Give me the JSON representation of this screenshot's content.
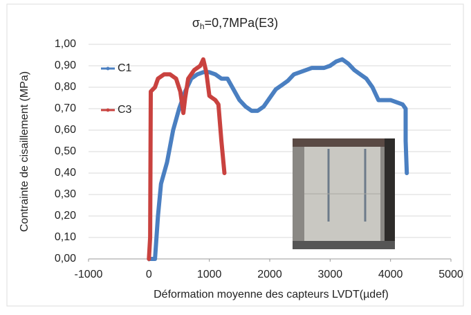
{
  "chart_data": {
    "type": "line",
    "title": [
      "σ",
      "h",
      "=0,7MPa(E3)"
    ],
    "xlabel": "Déformation moyenne des capteurs LVDT(µdef)",
    "ylabel": "Contrainte de cisaillement (MPa)",
    "xlim": [
      -1000,
      5000
    ],
    "xticks": [
      -1000,
      0,
      1000,
      2000,
      3000,
      4000,
      5000
    ],
    "ylim": [
      0,
      1
    ],
    "yticks": [
      {
        "value": 0,
        "label": "0,00"
      },
      {
        "value": 0.1,
        "label": "0,10"
      },
      {
        "value": 0.2,
        "label": "0,20"
      },
      {
        "value": 0.3,
        "label": "0,30"
      },
      {
        "value": 0.4,
        "label": "0,40"
      },
      {
        "value": 0.5,
        "label": "0,50"
      },
      {
        "value": 0.6,
        "label": "0,60"
      },
      {
        "value": 0.7,
        "label": "0,70"
      },
      {
        "value": 0.8,
        "label": "0,80"
      },
      {
        "value": 0.9,
        "label": "0,90"
      },
      {
        "value": 1,
        "label": "1,00"
      }
    ],
    "grid": true,
    "legend": "left",
    "series": [
      {
        "name": "C1",
        "color": "#4a7fc1",
        "x": [
          0,
          100,
          150,
          200,
          300,
          400,
          500,
          600,
          700,
          800,
          900,
          1000,
          1100,
          1200,
          1300,
          1400,
          1500,
          1600,
          1700,
          1800,
          1900,
          2000,
          2100,
          2200,
          2300,
          2400,
          2500,
          2600,
          2700,
          2800,
          2900,
          3000,
          3100,
          3200,
          3300,
          3400,
          3500,
          3600,
          3700,
          3800,
          3900,
          4000,
          4100,
          4200,
          4250,
          4250,
          4270
        ],
        "values": [
          0,
          0,
          0.2,
          0.35,
          0.45,
          0.6,
          0.7,
          0.78,
          0.84,
          0.86,
          0.87,
          0.87,
          0.86,
          0.84,
          0.84,
          0.79,
          0.74,
          0.71,
          0.69,
          0.69,
          0.71,
          0.75,
          0.79,
          0.81,
          0.83,
          0.86,
          0.87,
          0.88,
          0.89,
          0.89,
          0.89,
          0.9,
          0.92,
          0.93,
          0.91,
          0.88,
          0.86,
          0.84,
          0.8,
          0.74,
          0.74,
          0.74,
          0.73,
          0.72,
          0.7,
          0.55,
          0.4
        ]
      },
      {
        "name": "C3",
        "color": "#c9423f",
        "x": [
          0,
          20,
          30,
          100,
          150,
          250,
          350,
          450,
          520,
          570,
          600,
          650,
          750,
          850,
          900,
          950,
          1000,
          1050,
          1100,
          1150,
          1200,
          1250
        ],
        "values": [
          0,
          0.1,
          0.78,
          0.8,
          0.84,
          0.86,
          0.86,
          0.84,
          0.78,
          0.68,
          0.75,
          0.84,
          0.88,
          0.9,
          0.93,
          0.87,
          0.76,
          0.75,
          0.74,
          0.72,
          0.55,
          0.4
        ]
      }
    ]
  }
}
